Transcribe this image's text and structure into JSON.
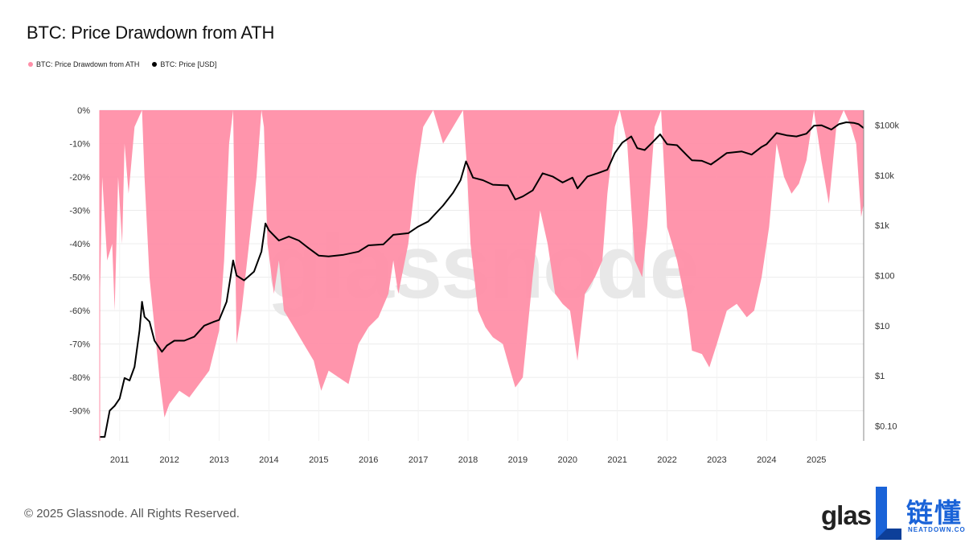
{
  "title": "BTC: Price Drawdown from ATH",
  "watermark": "glassnode",
  "footer": "© 2025 Glassnode. All Rights Reserved.",
  "brand": {
    "logo_text": "glas",
    "badge_cn": "链懂",
    "badge_en": "NEATDOWN.COM",
    "badge_color": "#1a63d8"
  },
  "chart_data": {
    "type": "area",
    "title": "BTC: Price Drawdown from ATH",
    "legend": [
      {
        "name": "BTC: Price Drawdown from ATH",
        "color": "#ff8fa8"
      },
      {
        "name": "BTC: Price [USD]",
        "color": "#000000"
      }
    ],
    "legend_placement": "top-left",
    "x_ticks": [
      "2011",
      "2012",
      "2013",
      "2014",
      "2015",
      "2016",
      "2017",
      "2018",
      "2019",
      "2020",
      "2021",
      "2022",
      "2023",
      "2024",
      "2025"
    ],
    "y_left_ticks": [
      "0%",
      "-10%",
      "-20%",
      "-30%",
      "-40%",
      "-50%",
      "-60%",
      "-70%",
      "-80%",
      "-90%"
    ],
    "y_left_range": [
      -99,
      0
    ],
    "y_right_ticks": [
      "$100k",
      "$10k",
      "$1k",
      "$100",
      "$10",
      "$1",
      "$0.10"
    ],
    "y_right_scale": "log",
    "y_right_range": [
      0.05,
      200000
    ],
    "x_range": [
      2010.6,
      2025.95
    ],
    "grid": true,
    "series": [
      {
        "name": "BTC: Price Drawdown from ATH",
        "unit": "%",
        "points": [
          [
            2010.6,
            -60
          ],
          [
            2010.65,
            -20
          ],
          [
            2010.75,
            -45
          ],
          [
            2010.85,
            -40
          ],
          [
            2010.9,
            -60
          ],
          [
            2010.97,
            -20
          ],
          [
            2011.05,
            -40
          ],
          [
            2011.1,
            -10
          ],
          [
            2011.18,
            -25
          ],
          [
            2011.3,
            -5
          ],
          [
            2011.45,
            0
          ],
          [
            2011.5,
            -20
          ],
          [
            2011.6,
            -50
          ],
          [
            2011.7,
            -65
          ],
          [
            2011.8,
            -80
          ],
          [
            2011.9,
            -92
          ],
          [
            2012.0,
            -88
          ],
          [
            2012.2,
            -84
          ],
          [
            2012.4,
            -86
          ],
          [
            2012.6,
            -82
          ],
          [
            2012.8,
            -78
          ],
          [
            2013.0,
            -66
          ],
          [
            2013.1,
            -45
          ],
          [
            2013.2,
            -10
          ],
          [
            2013.28,
            0
          ],
          [
            2013.35,
            -70
          ],
          [
            2013.45,
            -60
          ],
          [
            2013.6,
            -40
          ],
          [
            2013.75,
            -20
          ],
          [
            2013.85,
            0
          ],
          [
            2013.9,
            -5
          ],
          [
            2013.97,
            -40
          ],
          [
            2014.1,
            -55
          ],
          [
            2014.2,
            -45
          ],
          [
            2014.3,
            -60
          ],
          [
            2014.5,
            -65
          ],
          [
            2014.7,
            -70
          ],
          [
            2014.9,
            -75
          ],
          [
            2015.05,
            -84
          ],
          [
            2015.2,
            -78
          ],
          [
            2015.4,
            -80
          ],
          [
            2015.6,
            -82
          ],
          [
            2015.8,
            -70
          ],
          [
            2016.0,
            -65
          ],
          [
            2016.2,
            -62
          ],
          [
            2016.4,
            -55
          ],
          [
            2016.5,
            -45
          ],
          [
            2016.6,
            -55
          ],
          [
            2016.8,
            -40
          ],
          [
            2016.95,
            -20
          ],
          [
            2017.1,
            -5
          ],
          [
            2017.3,
            0
          ],
          [
            2017.5,
            -10
          ],
          [
            2017.7,
            -5
          ],
          [
            2017.9,
            0
          ],
          [
            2017.97,
            -15
          ],
          [
            2018.05,
            -40
          ],
          [
            2018.2,
            -60
          ],
          [
            2018.35,
            -65
          ],
          [
            2018.5,
            -68
          ],
          [
            2018.7,
            -70
          ],
          [
            2018.85,
            -78
          ],
          [
            2018.95,
            -83
          ],
          [
            2019.1,
            -80
          ],
          [
            2019.3,
            -50
          ],
          [
            2019.45,
            -30
          ],
          [
            2019.6,
            -40
          ],
          [
            2019.75,
            -55
          ],
          [
            2019.9,
            -58
          ],
          [
            2020.05,
            -60
          ],
          [
            2020.2,
            -75
          ],
          [
            2020.35,
            -55
          ],
          [
            2020.55,
            -50
          ],
          [
            2020.7,
            -45
          ],
          [
            2020.8,
            -25
          ],
          [
            2020.95,
            -5
          ],
          [
            2021.05,
            0
          ],
          [
            2021.2,
            -10
          ],
          [
            2021.35,
            -45
          ],
          [
            2021.5,
            -50
          ],
          [
            2021.6,
            -35
          ],
          [
            2021.75,
            -5
          ],
          [
            2021.88,
            0
          ],
          [
            2022.0,
            -35
          ],
          [
            2022.2,
            -45
          ],
          [
            2022.4,
            -60
          ],
          [
            2022.5,
            -72
          ],
          [
            2022.7,
            -73
          ],
          [
            2022.85,
            -77
          ],
          [
            2023.0,
            -70
          ],
          [
            2023.2,
            -60
          ],
          [
            2023.4,
            -58
          ],
          [
            2023.6,
            -62
          ],
          [
            2023.75,
            -60
          ],
          [
            2023.9,
            -50
          ],
          [
            2024.05,
            -35
          ],
          [
            2024.2,
            -10
          ],
          [
            2024.35,
            -20
          ],
          [
            2024.5,
            -25
          ],
          [
            2024.65,
            -22
          ],
          [
            2024.8,
            -15
          ],
          [
            2024.95,
            0
          ],
          [
            2025.1,
            -15
          ],
          [
            2025.25,
            -28
          ],
          [
            2025.4,
            -5
          ],
          [
            2025.55,
            0
          ],
          [
            2025.7,
            -5
          ],
          [
            2025.8,
            -10
          ],
          [
            2025.9,
            -32
          ],
          [
            2025.95,
            -28
          ]
        ]
      },
      {
        "name": "BTC: Price [USD]",
        "unit": "USD",
        "points": [
          [
            2010.6,
            0.06
          ],
          [
            2010.7,
            0.06
          ],
          [
            2010.8,
            0.2
          ],
          [
            2010.9,
            0.25
          ],
          [
            2011.0,
            0.35
          ],
          [
            2011.1,
            0.9
          ],
          [
            2011.2,
            0.8
          ],
          [
            2011.3,
            1.5
          ],
          [
            2011.4,
            8
          ],
          [
            2011.45,
            30
          ],
          [
            2011.5,
            15
          ],
          [
            2011.6,
            12
          ],
          [
            2011.7,
            5
          ],
          [
            2011.85,
            3
          ],
          [
            2011.95,
            4
          ],
          [
            2012.1,
            5
          ],
          [
            2012.3,
            5
          ],
          [
            2012.5,
            6
          ],
          [
            2012.7,
            10
          ],
          [
            2012.9,
            12
          ],
          [
            2013.0,
            13
          ],
          [
            2013.15,
            30
          ],
          [
            2013.28,
            200
          ],
          [
            2013.35,
            100
          ],
          [
            2013.5,
            80
          ],
          [
            2013.7,
            120
          ],
          [
            2013.85,
            300
          ],
          [
            2013.93,
            1100
          ],
          [
            2014.0,
            800
          ],
          [
            2014.2,
            500
          ],
          [
            2014.4,
            600
          ],
          [
            2014.6,
            500
          ],
          [
            2014.8,
            350
          ],
          [
            2015.0,
            250
          ],
          [
            2015.2,
            240
          ],
          [
            2015.5,
            260
          ],
          [
            2015.8,
            300
          ],
          [
            2016.0,
            400
          ],
          [
            2016.3,
            420
          ],
          [
            2016.5,
            650
          ],
          [
            2016.8,
            700
          ],
          [
            2017.0,
            950
          ],
          [
            2017.2,
            1200
          ],
          [
            2017.5,
            2500
          ],
          [
            2017.7,
            4500
          ],
          [
            2017.85,
            8000
          ],
          [
            2017.96,
            19000
          ],
          [
            2018.1,
            9000
          ],
          [
            2018.3,
            8000
          ],
          [
            2018.5,
            6500
          ],
          [
            2018.8,
            6300
          ],
          [
            2018.95,
            3300
          ],
          [
            2019.1,
            3800
          ],
          [
            2019.3,
            5000
          ],
          [
            2019.5,
            11000
          ],
          [
            2019.7,
            9500
          ],
          [
            2019.9,
            7200
          ],
          [
            2020.1,
            9000
          ],
          [
            2020.2,
            5500
          ],
          [
            2020.4,
            9500
          ],
          [
            2020.6,
            11000
          ],
          [
            2020.8,
            13000
          ],
          [
            2020.95,
            28000
          ],
          [
            2021.1,
            45000
          ],
          [
            2021.28,
            60000
          ],
          [
            2021.4,
            35000
          ],
          [
            2021.55,
            32000
          ],
          [
            2021.7,
            45000
          ],
          [
            2021.86,
            66000
          ],
          [
            2022.0,
            42000
          ],
          [
            2022.2,
            40000
          ],
          [
            2022.4,
            25000
          ],
          [
            2022.5,
            20000
          ],
          [
            2022.7,
            19500
          ],
          [
            2022.88,
            16500
          ],
          [
            2023.0,
            20000
          ],
          [
            2023.2,
            28000
          ],
          [
            2023.5,
            30000
          ],
          [
            2023.7,
            26000
          ],
          [
            2023.9,
            37000
          ],
          [
            2024.0,
            42000
          ],
          [
            2024.2,
            70000
          ],
          [
            2024.4,
            63000
          ],
          [
            2024.6,
            60000
          ],
          [
            2024.8,
            68000
          ],
          [
            2024.95,
            98000
          ],
          [
            2025.1,
            100000
          ],
          [
            2025.3,
            82000
          ],
          [
            2025.45,
            105000
          ],
          [
            2025.6,
            115000
          ],
          [
            2025.75,
            112000
          ],
          [
            2025.85,
            105000
          ],
          [
            2025.95,
            88000
          ]
        ]
      }
    ]
  }
}
